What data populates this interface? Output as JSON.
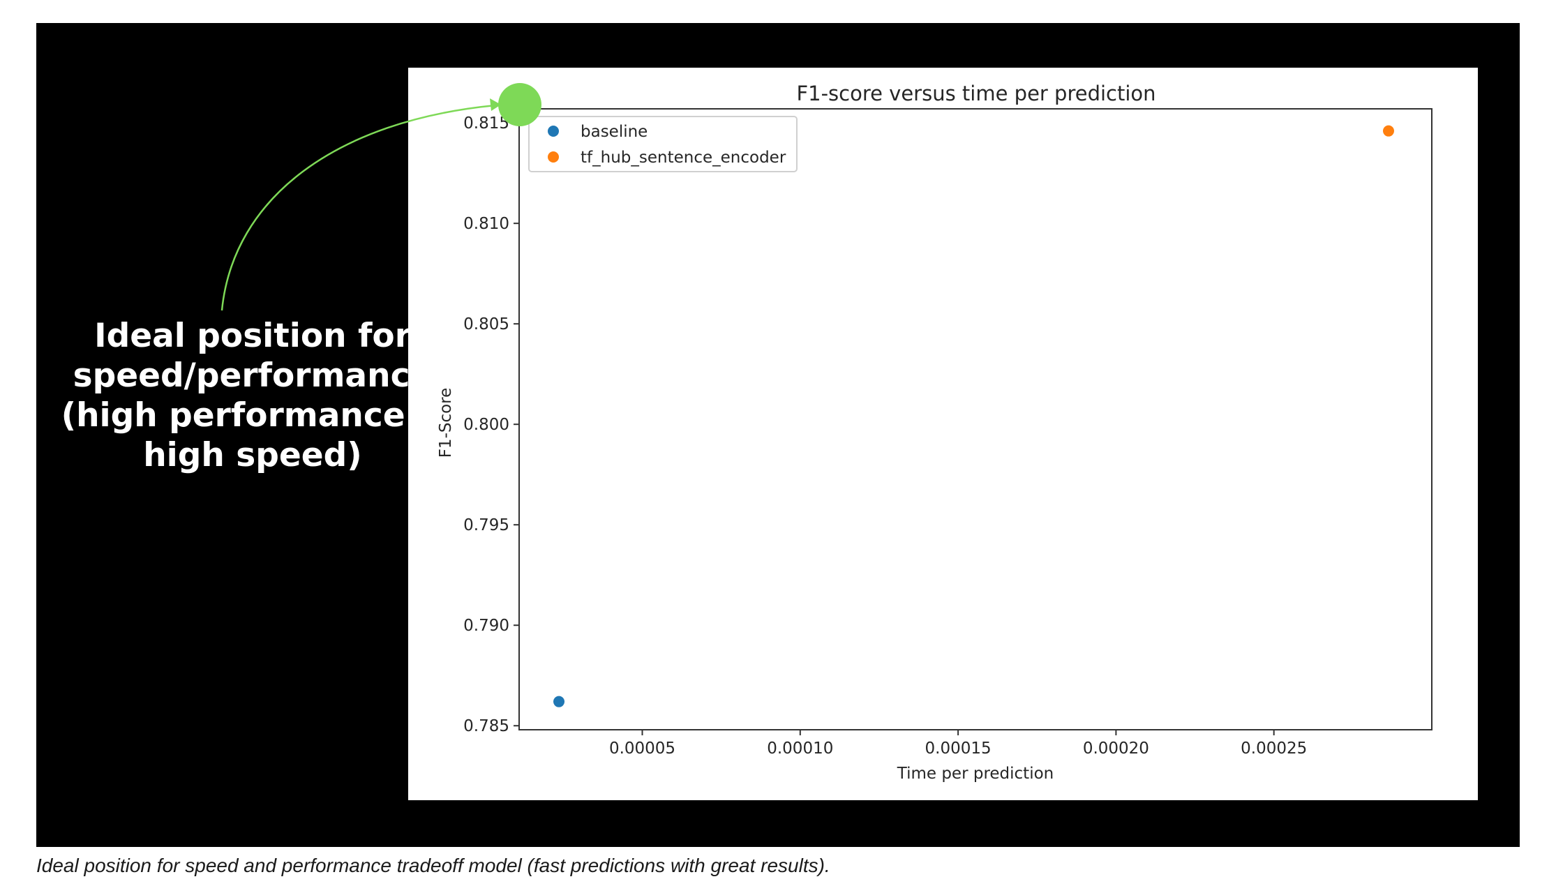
{
  "annotation": {
    "line1": "Ideal position for",
    "line2": "speed/performance",
    "line3": "(high performance +",
    "line4": "high speed)",
    "color": "#7ed957"
  },
  "caption": "Ideal position for speed and performance tradeoff model (fast predictions with great results).",
  "chart_data": {
    "type": "scatter",
    "title": "F1-score versus time per prediction",
    "xlabel": "Time per prediction",
    "ylabel": "F1-Score",
    "xlim": [
      1.1e-05,
      0.0003
    ],
    "ylim": [
      0.7848,
      0.8157
    ],
    "xticks": [
      5e-05,
      0.0001,
      0.00015,
      0.0002,
      0.00025
    ],
    "xtick_labels": [
      "0.00005",
      "0.00010",
      "0.00015",
      "0.00020",
      "0.00025"
    ],
    "yticks": [
      0.785,
      0.79,
      0.795,
      0.8,
      0.805,
      0.81,
      0.815
    ],
    "ytick_labels": [
      "0.785",
      "0.790",
      "0.795",
      "0.800",
      "0.805",
      "0.810",
      "0.815"
    ],
    "grid": false,
    "legend_position": "top-left",
    "series": [
      {
        "name": "baseline",
        "x": [
          2.36e-05
        ],
        "y": [
          0.7862
        ],
        "color": "#1f77b4"
      },
      {
        "name": "tf_hub_sentence_encoder",
        "x": [
          0.0002863
        ],
        "y": [
          0.8146
        ],
        "color": "#ff7f0e"
      }
    ]
  }
}
